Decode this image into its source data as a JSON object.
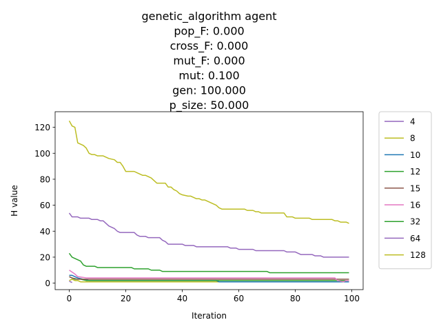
{
  "chart_data": {
    "type": "line",
    "title_lines": [
      "genetic_algorithm agent",
      "pop_F:   0.000",
      "cross_F:   0.000",
      "mut_F:   0.000",
      "mut:   0.100",
      "gen: 100.000",
      "p_size:  50.000"
    ],
    "xlabel": "Iteration",
    "ylabel": "H value",
    "xlim": [
      -5,
      104
    ],
    "ylim": [
      -5,
      132
    ],
    "xticks": [
      0,
      20,
      40,
      60,
      80,
      100
    ],
    "yticks": [
      0,
      20,
      40,
      60,
      80,
      100,
      120
    ],
    "grid": false,
    "legend_position": "outside-right",
    "series": [
      {
        "name": "4",
        "color": "#9467bd",
        "points": [
          [
            0,
            1.5
          ],
          [
            1,
            0.5
          ]
        ]
      },
      {
        "name": "8",
        "color": "#bcbd22",
        "points": [
          [
            0,
            2
          ],
          [
            1,
            3
          ],
          [
            2,
            2
          ],
          [
            3,
            2
          ],
          [
            4,
            1
          ],
          [
            99,
            1
          ]
        ]
      },
      {
        "name": "10",
        "color": "#1f77b4",
        "points": [
          [
            0,
            6
          ],
          [
            1,
            6
          ],
          [
            3,
            4
          ],
          [
            5,
            3
          ],
          [
            7,
            2
          ],
          [
            52,
            2
          ],
          [
            53,
            1
          ],
          [
            99,
            1
          ]
        ]
      },
      {
        "name": "12",
        "color": "#2ca02c",
        "points": [
          [
            0,
            5
          ],
          [
            2,
            3
          ],
          [
            4,
            3
          ],
          [
            6,
            2
          ],
          [
            99,
            2
          ]
        ]
      },
      {
        "name": "15",
        "color": "#8c564b",
        "points": [
          [
            0,
            5
          ],
          [
            1,
            4
          ],
          [
            3,
            3
          ],
          [
            99,
            3
          ]
        ]
      },
      {
        "name": "16",
        "color": "#e377c2",
        "points": [
          [
            0,
            10
          ],
          [
            2,
            7
          ],
          [
            3,
            5
          ],
          [
            6,
            4
          ],
          [
            94,
            4
          ],
          [
            95,
            2
          ],
          [
            97,
            1
          ],
          [
            98,
            2
          ],
          [
            99,
            2
          ]
        ]
      },
      {
        "name": "32",
        "color": "#2ca02c",
        "points": [
          [
            0,
            23
          ],
          [
            1,
            20
          ],
          [
            3,
            18
          ],
          [
            4,
            17
          ],
          [
            5,
            14
          ],
          [
            6,
            13
          ],
          [
            9,
            13
          ],
          [
            10,
            12
          ],
          [
            22,
            12
          ],
          [
            23,
            11
          ],
          [
            28,
            11
          ],
          [
            29,
            10
          ],
          [
            32,
            10
          ],
          [
            33,
            9
          ],
          [
            70,
            9
          ],
          [
            71,
            8
          ],
          [
            99,
            8
          ]
        ]
      },
      {
        "name": "64",
        "color": "#9467bd",
        "points": [
          [
            0,
            54
          ],
          [
            1,
            51
          ],
          [
            3,
            51
          ],
          [
            4,
            50
          ],
          [
            7,
            50
          ],
          [
            8,
            49
          ],
          [
            10,
            49
          ],
          [
            11,
            48
          ],
          [
            12,
            48
          ],
          [
            13,
            46
          ],
          [
            14,
            44
          ],
          [
            16,
            42
          ],
          [
            17,
            40
          ],
          [
            18,
            39
          ],
          [
            23,
            39
          ],
          [
            24,
            37
          ],
          [
            25,
            36
          ],
          [
            27,
            36
          ],
          [
            28,
            35
          ],
          [
            32,
            35
          ],
          [
            33,
            33
          ],
          [
            34,
            32
          ],
          [
            35,
            30
          ],
          [
            40,
            30
          ],
          [
            41,
            29
          ],
          [
            44,
            29
          ],
          [
            45,
            28
          ],
          [
            56,
            28
          ],
          [
            57,
            27
          ],
          [
            59,
            27
          ],
          [
            60,
            26
          ],
          [
            65,
            26
          ],
          [
            66,
            25
          ],
          [
            76,
            25
          ],
          [
            77,
            24
          ],
          [
            80,
            24
          ],
          [
            81,
            23
          ],
          [
            82,
            22
          ],
          [
            86,
            22
          ],
          [
            87,
            21
          ],
          [
            89,
            21
          ],
          [
            90,
            20
          ],
          [
            99,
            20
          ]
        ]
      },
      {
        "name": "128",
        "color": "#bcbd22",
        "points": [
          [
            0,
            125
          ],
          [
            1,
            121
          ],
          [
            2,
            120
          ],
          [
            3,
            108
          ],
          [
            4,
            107
          ],
          [
            5,
            106
          ],
          [
            6,
            104
          ],
          [
            7,
            100
          ],
          [
            8,
            99
          ],
          [
            9,
            99
          ],
          [
            10,
            98
          ],
          [
            12,
            98
          ],
          [
            13,
            97
          ],
          [
            14,
            96
          ],
          [
            16,
            95
          ],
          [
            17,
            93
          ],
          [
            18,
            93
          ],
          [
            19,
            90
          ],
          [
            20,
            86
          ],
          [
            23,
            86
          ],
          [
            24,
            85
          ],
          [
            26,
            83
          ],
          [
            27,
            83
          ],
          [
            29,
            81
          ],
          [
            30,
            79
          ],
          [
            31,
            77
          ],
          [
            34,
            77
          ],
          [
            35,
            74
          ],
          [
            36,
            74
          ],
          [
            37,
            72
          ],
          [
            38,
            71
          ],
          [
            39,
            69
          ],
          [
            40,
            68
          ],
          [
            42,
            67
          ],
          [
            43,
            67
          ],
          [
            44,
            66
          ],
          [
            45,
            65
          ],
          [
            46,
            65
          ],
          [
            47,
            64
          ],
          [
            48,
            64
          ],
          [
            49,
            63
          ],
          [
            50,
            62
          ],
          [
            51,
            61
          ],
          [
            52,
            60
          ],
          [
            53,
            58
          ],
          [
            54,
            57
          ],
          [
            62,
            57
          ],
          [
            63,
            56
          ],
          [
            65,
            56
          ],
          [
            66,
            55
          ],
          [
            67,
            55
          ],
          [
            68,
            54
          ],
          [
            76,
            54
          ],
          [
            77,
            51
          ],
          [
            79,
            51
          ],
          [
            80,
            50
          ],
          [
            85,
            50
          ],
          [
            86,
            49
          ],
          [
            93,
            49
          ],
          [
            94,
            48
          ],
          [
            95,
            48
          ],
          [
            96,
            47
          ],
          [
            98,
            47
          ],
          [
            99,
            46
          ]
        ]
      }
    ]
  }
}
